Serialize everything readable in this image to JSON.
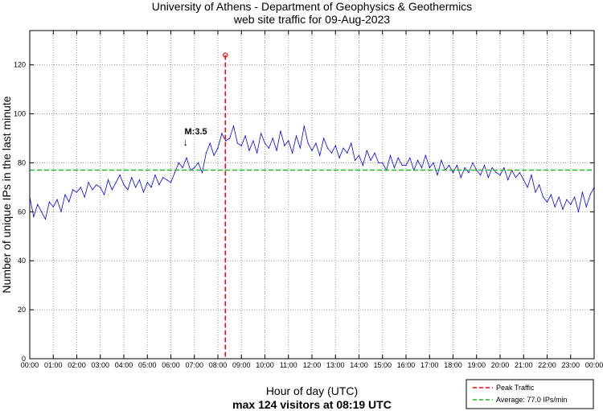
{
  "chart_data": {
    "type": "line",
    "title": "University of Athens - Department of Geophysics & Geothermics",
    "subtitle": "web site traffic for 09-Aug-2023",
    "xlabel": "Hour of day (UTC)",
    "xlabel2": "max 124 visitors at 08:19 UTC",
    "ylabel": "Number of unique IPs in the last minute",
    "xlim": [
      0,
      24
    ],
    "ylim": [
      0,
      134
    ],
    "grid": true,
    "x_ticks": [
      "00:00",
      "01:00",
      "02:00",
      "03:00",
      "04:00",
      "05:00",
      "06:00",
      "07:00",
      "08:00",
      "09:00",
      "10:00",
      "11:00",
      "12:00",
      "13:00",
      "14:00",
      "15:00",
      "16:00",
      "17:00",
      "18:00",
      "19:00",
      "20:00",
      "21:00",
      "22:00",
      "23:00",
      "00:00"
    ],
    "y_ticks": [
      0,
      20,
      40,
      60,
      80,
      100,
      120
    ],
    "series_interval_minutes": 10,
    "series": [
      {
        "name": "Traffic",
        "color": "#0000ff",
        "values": [
          66,
          58,
          63,
          60,
          57,
          64,
          62,
          65,
          60,
          67,
          64,
          69,
          68,
          70,
          66,
          72,
          69,
          71,
          70,
          67,
          73,
          69,
          72,
          75,
          71,
          69,
          74,
          70,
          73,
          68,
          72,
          70,
          75,
          71,
          74,
          73,
          72,
          76,
          80,
          78,
          82,
          77,
          78,
          80,
          76,
          84,
          88,
          83,
          86,
          92,
          89,
          90,
          95,
          88,
          87,
          91,
          85,
          89,
          84,
          92,
          88,
          86,
          90,
          85,
          93,
          87,
          89,
          84,
          91,
          86,
          95,
          88,
          85,
          88,
          83,
          90,
          86,
          84,
          87,
          82,
          86,
          84,
          88,
          81,
          83,
          79,
          85,
          81,
          84,
          80,
          80,
          77,
          83,
          78,
          82,
          79,
          79,
          82,
          77,
          81,
          78,
          83,
          78,
          80,
          75,
          81,
          77,
          79,
          76,
          79,
          74,
          78,
          76,
          80,
          77,
          75,
          79,
          74,
          78,
          76,
          75,
          78,
          73,
          77,
          74,
          76,
          73,
          70,
          75,
          68,
          71,
          66,
          64,
          67,
          62,
          66,
          61,
          65,
          63,
          66,
          60,
          68,
          62,
          67,
          70
        ]
      }
    ],
    "peak": {
      "label": "Peak Traffic",
      "hour": 8.3167,
      "value": 124,
      "color": "#ff0000"
    },
    "average": {
      "label": "Average: 77.0 IPs/min",
      "value": 77.0,
      "color": "#22bb22"
    },
    "annotation": {
      "text": "M:3.5",
      "arrow": "↓",
      "hour": 6.65,
      "value": 88
    },
    "legend_position": "bottom-right"
  }
}
